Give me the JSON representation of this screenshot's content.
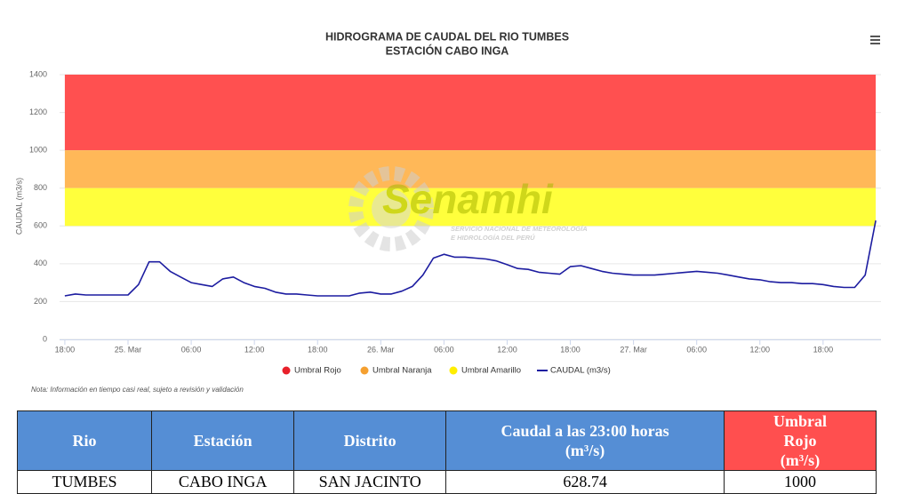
{
  "chart_data": {
    "type": "line",
    "title": [
      "HIDROGRAMA DE CAUDAL DEL RIO TUMBES",
      "ESTACIÓN CABO INGA"
    ],
    "y_label": "CAUDAL (m3/s)",
    "note": "Nota: Información en tiempo casi real, sujeto a revisión y validación",
    "x": [
      0,
      1,
      2,
      3,
      4,
      5,
      6,
      7,
      8,
      9,
      10,
      11,
      12,
      13,
      14,
      15,
      16,
      17,
      18,
      19,
      20,
      21,
      22,
      23,
      24,
      25,
      26,
      27,
      28,
      29,
      30,
      31,
      32,
      33,
      34,
      35,
      36,
      37,
      38,
      39,
      40,
      41,
      42,
      43,
      44,
      45,
      46,
      47,
      48,
      49,
      50,
      51,
      52,
      53,
      54,
      55,
      56,
      57,
      58,
      59,
      60,
      61,
      62,
      63,
      64,
      65,
      66,
      67,
      68,
      69,
      70,
      71,
      72,
      73,
      74,
      75,
      76,
      77
    ],
    "series": [
      {
        "name": "CAUDAL (m3/s)",
        "color": "#1c1ca0",
        "values": [
          230,
          240,
          235,
          235,
          235,
          235,
          235,
          290,
          410,
          410,
          360,
          330,
          300,
          290,
          280,
          320,
          330,
          300,
          280,
          270,
          250,
          240,
          240,
          235,
          230,
          230,
          230,
          230,
          245,
          250,
          240,
          240,
          255,
          280,
          340,
          430,
          450,
          435,
          435,
          430,
          425,
          415,
          395,
          375,
          370,
          355,
          350,
          345,
          385,
          390,
          375,
          360,
          350,
          345,
          340,
          340,
          340,
          345,
          350,
          355,
          360,
          355,
          350,
          340,
          330,
          320,
          315,
          305,
          300,
          300,
          295,
          295,
          290,
          280,
          275,
          275,
          340,
          628.74
        ]
      }
    ],
    "bands": [
      {
        "name": "Umbral Rojo",
        "color": "#ff5050",
        "marker": "#e8202a",
        "from": 1000,
        "to": 1400
      },
      {
        "name": "Umbral Naranja",
        "color": "#ffb858",
        "marker": "#f5a030",
        "from": 800,
        "to": 1000
      },
      {
        "name": "Umbral Amarillo",
        "color": "#ffff3c",
        "marker": "#ffee00",
        "from": 600,
        "to": 800
      }
    ],
    "xlim": [
      -0.5,
      77.5
    ],
    "xticks": [
      {
        "value": 0,
        "label": "18:00"
      },
      {
        "value": 6,
        "label": "25. Mar"
      },
      {
        "value": 12,
        "label": "06:00"
      },
      {
        "value": 18,
        "label": "12:00"
      },
      {
        "value": 24,
        "label": "18:00"
      },
      {
        "value": 30,
        "label": "26. Mar"
      },
      {
        "value": 36,
        "label": "06:00"
      },
      {
        "value": 42,
        "label": "12:00"
      },
      {
        "value": 48,
        "label": "18:00"
      },
      {
        "value": 54,
        "label": "27. Mar"
      },
      {
        "value": 60,
        "label": "06:00"
      },
      {
        "value": 66,
        "label": "12:00"
      },
      {
        "value": 72,
        "label": "18:00"
      }
    ],
    "ylim": [
      0,
      1400
    ],
    "yticks": [
      0,
      200,
      400,
      600,
      800,
      1000,
      1200,
      1400
    ],
    "grid": true
  },
  "watermark": {
    "name": "Senamhi",
    "subtitle": [
      "SERVICIO NACIONAL DE METEOROLOGÍA",
      "E HIDROLOGÍA DEL PERÚ"
    ]
  },
  "table": {
    "header": [
      "Rio",
      "Estación",
      "Distrito",
      "Caudal a las 23:00 horas (m³/s)",
      "Umbral Rojo (m³/s)"
    ],
    "rows": [
      [
        "TUMBES",
        "CABO INGA",
        "SAN JACINTO",
        "628.74",
        "1000"
      ]
    ]
  }
}
